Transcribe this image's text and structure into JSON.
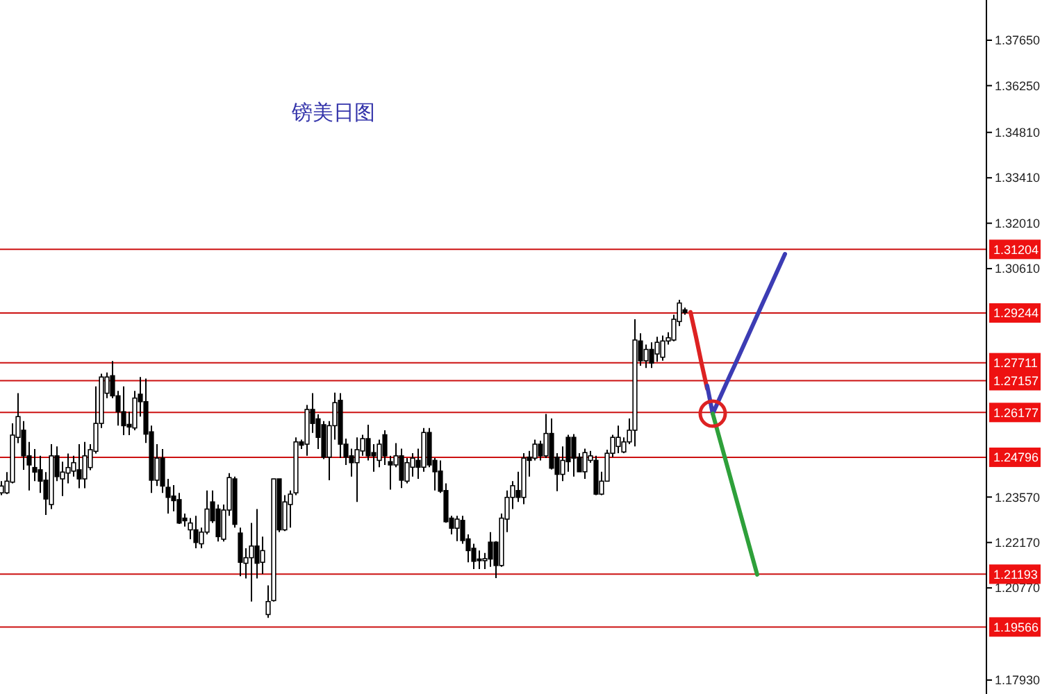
{
  "chart_data": {
    "type": "candlestick",
    "title": "镑美日图",
    "categories": [
      null,
      null,
      null,
      null,
      null,
      null,
      null,
      null,
      null,
      null,
      null,
      null,
      null,
      null,
      null,
      null,
      null,
      null,
      null,
      null,
      null,
      null,
      null,
      null,
      null,
      null,
      null,
      null,
      null,
      null,
      null,
      null,
      null,
      null,
      null,
      null,
      null,
      null,
      null,
      null,
      null,
      null,
      null,
      null,
      null,
      null,
      null,
      null,
      null,
      null,
      null,
      null,
      null,
      null,
      null,
      null,
      null,
      null,
      null,
      null,
      null,
      null,
      null,
      null,
      null,
      null,
      null,
      null,
      null,
      null,
      null,
      null,
      null,
      null,
      null,
      null,
      null,
      null,
      null,
      null,
      null,
      null,
      null,
      null,
      null,
      null,
      null,
      null,
      null,
      null,
      null,
      null,
      null,
      null,
      null,
      null,
      null,
      null,
      null,
      null,
      null,
      null,
      null,
      null,
      null,
      null,
      null,
      null,
      null,
      null,
      null,
      null,
      null,
      null,
      null,
      null,
      null,
      null,
      null,
      null,
      null,
      null,
      null,
      null,
      null,
      null,
      null,
      null,
      null,
      null,
      null,
      null,
      null,
      null,
      null,
      null,
      null,
      null,
      null,
      null,
      null,
      null,
      null,
      null,
      null,
      null,
      null,
      null,
      null,
      null,
      null,
      null,
      null,
      null,
      null,
      null,
      null,
      null,
      null,
      null,
      null,
      null,
      null,
      null,
      null,
      null,
      null,
      null,
      null,
      null,
      null,
      null,
      null,
      null,
      null,
      null,
      null
    ],
    "ohlc": [
      [
        1.237,
        1.2406,
        1.2363,
        1.2391
      ],
      [
        1.237,
        1.2434,
        1.2366,
        1.2406
      ],
      [
        1.2403,
        1.2584,
        1.2399,
        1.2548
      ],
      [
        1.2541,
        1.2677,
        1.2523,
        1.2605
      ],
      [
        1.2563,
        1.2591,
        1.2441,
        1.2484
      ],
      [
        1.2484,
        1.2527,
        1.2377,
        1.2456
      ],
      [
        1.2448,
        1.2505,
        1.2406,
        1.2434
      ],
      [
        1.2441,
        1.2484,
        1.237,
        1.2406
      ],
      [
        1.2409,
        1.2434,
        1.2302,
        1.2351
      ],
      [
        1.2334,
        1.252,
        1.232,
        1.2484
      ],
      [
        1.2484,
        1.2513,
        1.2406,
        1.242
      ],
      [
        1.2413,
        1.2466,
        1.236,
        1.2434
      ],
      [
        1.2431,
        1.2491,
        1.2399,
        1.2448
      ],
      [
        1.2437,
        1.2484,
        1.242,
        1.2463
      ],
      [
        1.2441,
        1.252,
        1.2384,
        1.2413
      ],
      [
        1.2413,
        1.2527,
        1.2384,
        1.2484
      ],
      [
        1.2448,
        1.252,
        1.244,
        1.2503
      ],
      [
        1.2498,
        1.2698,
        1.2491,
        1.2584
      ],
      [
        1.2584,
        1.2737,
        1.257,
        1.2727
      ],
      [
        1.2677,
        1.2741,
        1.2662,
        1.2727
      ],
      [
        1.2731,
        1.2776,
        1.2662,
        1.2669
      ],
      [
        1.2669,
        1.2684,
        1.2577,
        1.262
      ],
      [
        1.262,
        1.2698,
        1.2548,
        1.2577
      ],
      [
        1.2581,
        1.262,
        1.2548,
        1.2573
      ],
      [
        1.257,
        1.2684,
        1.2563,
        1.2662
      ],
      [
        1.2674,
        1.2727,
        1.2605,
        1.2651
      ],
      [
        1.2651,
        1.2722,
        1.2524,
        1.2551
      ],
      [
        1.2558,
        1.2577,
        1.237,
        1.2409
      ],
      [
        1.2409,
        1.252,
        1.2391,
        1.2477
      ],
      [
        1.2477,
        1.2505,
        1.237,
        1.2391
      ],
      [
        1.2387,
        1.2413,
        1.2306,
        1.2356
      ],
      [
        1.236,
        1.2394,
        1.2313,
        1.2346
      ],
      [
        1.2349,
        1.237,
        1.2274,
        1.2277
      ],
      [
        1.2292,
        1.2306,
        1.2266,
        1.2284
      ],
      [
        1.2256,
        1.2292,
        1.2227,
        1.2277
      ],
      [
        1.2256,
        1.2299,
        1.2199,
        1.2217
      ],
      [
        1.2213,
        1.2263,
        1.2199,
        1.2249
      ],
      [
        1.2249,
        1.2377,
        1.2242,
        1.232
      ],
      [
        1.2342,
        1.2377,
        1.2277,
        1.2284
      ],
      [
        1.232,
        1.2334,
        1.222,
        1.2235
      ],
      [
        1.2227,
        1.2334,
        1.222,
        1.2317
      ],
      [
        1.2317,
        1.2431,
        1.2299,
        1.2417
      ],
      [
        1.2413,
        1.242,
        1.2263,
        1.2273
      ],
      [
        1.2246,
        1.2263,
        1.2113,
        1.2156
      ],
      [
        1.2153,
        1.2199,
        1.2106,
        1.217
      ],
      [
        1.217,
        1.2277,
        1.2035,
        1.2206
      ],
      [
        1.2206,
        1.232,
        1.2106,
        1.2153
      ],
      [
        1.2156,
        1.2235,
        1.212,
        1.2192
      ],
      [
        1.1995,
        1.2085,
        1.1985,
        1.2035
      ],
      [
        1.2038,
        1.2413,
        1.2035,
        1.2413
      ],
      [
        1.2413,
        1.2413,
        1.2249,
        1.2256
      ],
      [
        1.2256,
        1.2363,
        1.2252,
        1.2342
      ],
      [
        1.2334,
        1.2377,
        1.2263,
        1.2366
      ],
      [
        1.237,
        1.2541,
        1.2363,
        1.2527
      ],
      [
        1.2527,
        1.2534,
        1.2505,
        1.2517
      ],
      [
        1.252,
        1.2641,
        1.2484,
        1.2627
      ],
      [
        1.2627,
        1.2677,
        1.2555,
        1.2584
      ],
      [
        1.2598,
        1.2612,
        1.2505,
        1.2541
      ],
      [
        1.258,
        1.2591,
        1.2474,
        1.248
      ],
      [
        1.248,
        1.2591,
        1.2409,
        1.2577
      ],
      [
        1.2577,
        1.2679,
        1.2534,
        1.2648
      ],
      [
        1.2655,
        1.2677,
        1.2477,
        1.252
      ],
      [
        1.252,
        1.2537,
        1.2456,
        1.248
      ],
      [
        1.2484,
        1.2506,
        1.242,
        1.2463
      ],
      [
        1.2463,
        1.2541,
        1.2342,
        1.2503
      ],
      [
        1.2499,
        1.2549,
        1.2484,
        1.2537
      ],
      [
        1.2537,
        1.258,
        1.247,
        1.2484
      ],
      [
        1.2494,
        1.252,
        1.2435,
        1.2484
      ],
      [
        1.247,
        1.2534,
        1.2449,
        1.252
      ],
      [
        1.2549,
        1.2563,
        1.2456,
        1.2484
      ],
      [
        1.2466,
        1.2484,
        1.238,
        1.2456
      ],
      [
        1.2456,
        1.2523,
        1.2449,
        1.2484
      ],
      [
        1.2484,
        1.2506,
        1.2385,
        1.2409
      ],
      [
        1.2406,
        1.2477,
        1.2399,
        1.2463
      ],
      [
        1.2449,
        1.2492,
        1.242,
        1.2477
      ],
      [
        1.247,
        1.2506,
        1.2413,
        1.2449
      ],
      [
        1.2449,
        1.257,
        1.2435,
        1.2556
      ],
      [
        1.2556,
        1.257,
        1.2449,
        1.2456
      ],
      [
        1.247,
        1.2477,
        1.2377,
        1.2435
      ],
      [
        1.2437,
        1.247,
        1.237,
        1.2375
      ],
      [
        1.2377,
        1.2399,
        1.2278,
        1.2281
      ],
      [
        1.2292,
        1.2299,
        1.2242,
        1.2261
      ],
      [
        1.2261,
        1.2299,
        1.2221,
        1.2289
      ],
      [
        1.2285,
        1.2299,
        1.2213,
        1.2223
      ],
      [
        1.2228,
        1.2242,
        1.2156,
        1.2192
      ],
      [
        1.2199,
        1.2213,
        1.2135,
        1.2159
      ],
      [
        1.2166,
        1.2192,
        1.2135,
        1.2161
      ],
      [
        1.2161,
        1.2185,
        1.2135,
        1.2167
      ],
      [
        1.2218,
        1.2249,
        1.2142,
        1.2166
      ],
      [
        1.2218,
        1.2221,
        1.2107,
        1.2146
      ],
      [
        1.2146,
        1.2306,
        1.2142,
        1.2292
      ],
      [
        1.2289,
        1.2377,
        1.2249,
        1.2356
      ],
      [
        1.2356,
        1.2406,
        1.232,
        1.2392
      ],
      [
        1.2377,
        1.2435,
        1.2342,
        1.2356
      ],
      [
        1.2356,
        1.2492,
        1.2335,
        1.2477
      ],
      [
        1.248,
        1.2499,
        1.242,
        1.247
      ],
      [
        1.2477,
        1.2534,
        1.247,
        1.252
      ],
      [
        1.252,
        1.2531,
        1.247,
        1.2484
      ],
      [
        1.2484,
        1.2613,
        1.2477,
        1.2553
      ],
      [
        1.2553,
        1.2599,
        1.2442,
        1.2446
      ],
      [
        1.248,
        1.2492,
        1.2375,
        1.2427
      ],
      [
        1.2427,
        1.2513,
        1.2406,
        1.247
      ],
      [
        1.2541,
        1.2549,
        1.2435,
        1.2466
      ],
      [
        1.2541,
        1.2551,
        1.242,
        1.2477
      ],
      [
        1.248,
        1.2492,
        1.2435,
        1.2435
      ],
      [
        1.2435,
        1.2506,
        1.2413,
        1.2494
      ],
      [
        1.247,
        1.2499,
        1.2463,
        1.2484
      ],
      [
        1.247,
        1.2484,
        1.2363,
        1.2366
      ],
      [
        1.2366,
        1.2435,
        1.2363,
        1.2406
      ],
      [
        1.2406,
        1.2503,
        1.2406,
        1.2492
      ],
      [
        1.2492,
        1.2549,
        1.248,
        1.2541
      ],
      [
        1.2513,
        1.2577,
        1.2492,
        1.2541
      ],
      [
        1.2496,
        1.2541,
        1.2492,
        1.2527
      ],
      [
        1.2527,
        1.2599,
        1.252,
        1.2563
      ],
      [
        1.2563,
        1.2905,
        1.2513,
        1.2841
      ],
      [
        1.2838,
        1.2862,
        1.2762,
        1.2777
      ],
      [
        1.2777,
        1.2827,
        1.2755,
        1.2812
      ],
      [
        1.2812,
        1.2834,
        1.2755,
        1.277
      ],
      [
        1.2798,
        1.2851,
        1.2774,
        1.2834
      ],
      [
        1.2788,
        1.2855,
        1.2777,
        1.2838
      ],
      [
        1.2838,
        1.2865,
        1.2827,
        1.2848
      ],
      [
        1.2841,
        1.2919,
        1.2837,
        1.2905
      ],
      [
        1.2898,
        1.2965,
        1.2884,
        1.2955
      ],
      [
        1.2934,
        1.2941,
        1.2919,
        1.2926
      ],
      null,
      null,
      null,
      null,
      null,
      null,
      null,
      null,
      null,
      null,
      null,
      null,
      null,
      null,
      null,
      null,
      null,
      null,
      null,
      null,
      null,
      null,
      null,
      null,
      null,
      null,
      null,
      null,
      null,
      null,
      null,
      null,
      null,
      null,
      null,
      null,
      null,
      null,
      null,
      null,
      null,
      null,
      null,
      null,
      null,
      null,
      null,
      null,
      null,
      null,
      null,
      null,
      null
    ],
    "series": [
      {
        "type": "line",
        "color": "#dd2222",
        "values": [
          null,
          null,
          null,
          null,
          null,
          null,
          null,
          null,
          null,
          null,
          null,
          null,
          null,
          null,
          null,
          null,
          null,
          null,
          null,
          null,
          null,
          null,
          null,
          null,
          null,
          null,
          null,
          null,
          null,
          null,
          null,
          null,
          null,
          null,
          null,
          null,
          null,
          null,
          null,
          null,
          null,
          null,
          null,
          null,
          null,
          null,
          null,
          null,
          null,
          null,
          null,
          null,
          null,
          null,
          null,
          null,
          null,
          null,
          null,
          null,
          null,
          null,
          null,
          null,
          null,
          null,
          null,
          null,
          null,
          null,
          null,
          null,
          null,
          null,
          null,
          null,
          null,
          null,
          null,
          null,
          null,
          null,
          null,
          null,
          null,
          null,
          null,
          null,
          null,
          null,
          null,
          null,
          null,
          null,
          null,
          null,
          null,
          null,
          null,
          null,
          null,
          null,
          null,
          null,
          null,
          null,
          null,
          null,
          null,
          null,
          null,
          null,
          null,
          null,
          null,
          null,
          null,
          null,
          null,
          null,
          null,
          null,
          null,
          null,
          1.2927,
          1.285,
          1.2768,
          1.2691,
          null,
          null,
          null,
          null,
          null,
          null,
          null,
          null,
          null,
          null,
          null,
          null,
          null,
          null,
          null,
          null,
          null,
          null,
          null,
          null,
          null,
          null,
          null,
          null,
          null,
          null,
          null,
          null,
          null,
          null,
          null,
          null,
          null,
          null,
          null,
          null,
          null,
          null,
          null,
          null,
          null,
          null,
          null,
          null,
          null,
          null,
          null,
          null,
          null
        ]
      },
      {
        "type": "line",
        "color": "#3c3cb4",
        "values": [
          null,
          null,
          null,
          null,
          null,
          null,
          null,
          null,
          null,
          null,
          null,
          null,
          null,
          null,
          null,
          null,
          null,
          null,
          null,
          null,
          null,
          null,
          null,
          null,
          null,
          null,
          null,
          null,
          null,
          null,
          null,
          null,
          null,
          null,
          null,
          null,
          null,
          null,
          null,
          null,
          null,
          null,
          null,
          null,
          null,
          null,
          null,
          null,
          null,
          null,
          null,
          null,
          null,
          null,
          null,
          null,
          null,
          null,
          null,
          null,
          null,
          null,
          null,
          null,
          null,
          null,
          null,
          null,
          null,
          null,
          null,
          null,
          null,
          null,
          null,
          null,
          null,
          null,
          null,
          null,
          null,
          null,
          null,
          null,
          null,
          null,
          null,
          null,
          null,
          null,
          null,
          null,
          null,
          null,
          null,
          null,
          null,
          null,
          null,
          null,
          null,
          null,
          null,
          null,
          null,
          null,
          null,
          null,
          null,
          null,
          null,
          null,
          null,
          null,
          null,
          null,
          null,
          null,
          null,
          null,
          null,
          null,
          null,
          null,
          null,
          null,
          null,
          1.27,
          1.2614,
          1.2652,
          1.269,
          1.2728,
          1.2765,
          1.2803,
          1.2841,
          1.2879,
          1.2917,
          1.2955,
          1.2992,
          1.303,
          1.3068,
          1.3106,
          null,
          null,
          null,
          null,
          null,
          null,
          null,
          null,
          null,
          null,
          null,
          null,
          null,
          null,
          null,
          null,
          null,
          null,
          null,
          null,
          null,
          null,
          null,
          null,
          null,
          null,
          null,
          null,
          null,
          null,
          null,
          null,
          null,
          null,
          null
        ]
      },
      {
        "type": "line",
        "color": "#2ea03a",
        "values": [
          null,
          null,
          null,
          null,
          null,
          null,
          null,
          null,
          null,
          null,
          null,
          null,
          null,
          null,
          null,
          null,
          null,
          null,
          null,
          null,
          null,
          null,
          null,
          null,
          null,
          null,
          null,
          null,
          null,
          null,
          null,
          null,
          null,
          null,
          null,
          null,
          null,
          null,
          null,
          null,
          null,
          null,
          null,
          null,
          null,
          null,
          null,
          null,
          null,
          null,
          null,
          null,
          null,
          null,
          null,
          null,
          null,
          null,
          null,
          null,
          null,
          null,
          null,
          null,
          null,
          null,
          null,
          null,
          null,
          null,
          null,
          null,
          null,
          null,
          null,
          null,
          null,
          null,
          null,
          null,
          null,
          null,
          null,
          null,
          null,
          null,
          null,
          null,
          null,
          null,
          null,
          null,
          null,
          null,
          null,
          null,
          null,
          null,
          null,
          null,
          null,
          null,
          null,
          null,
          null,
          null,
          null,
          null,
          null,
          null,
          null,
          null,
          null,
          null,
          null,
          null,
          null,
          null,
          null,
          null,
          null,
          null,
          null,
          null,
          null,
          null,
          null,
          null,
          1.2614,
          1.2552,
          1.249,
          1.2428,
          1.2366,
          1.2304,
          1.2242,
          1.218,
          1.2118,
          null,
          null,
          null,
          null,
          null,
          null,
          null,
          null,
          null,
          null,
          null,
          null,
          null,
          null,
          null,
          null,
          null,
          null,
          null,
          null,
          null,
          null,
          null,
          null,
          null,
          null,
          null,
          null,
          null,
          null,
          null,
          null,
          null,
          null,
          null,
          null,
          null,
          null,
          null,
          null
        ]
      }
    ],
    "ylim": [
      1.175,
      1.3889
    ],
    "yticks": [
      {
        "value": 1.3765,
        "label": "1.37650"
      },
      {
        "value": 1.3625,
        "label": "1.36250"
      },
      {
        "value": 1.3481,
        "label": "1.34810"
      },
      {
        "value": 1.3341,
        "label": "1.33410"
      },
      {
        "value": 1.3201,
        "label": "1.32010"
      },
      {
        "value": 1.3061,
        "label": "1.30610"
      },
      {
        "value": 1.2357,
        "label": "1.23570"
      },
      {
        "value": 1.2217,
        "label": "1.22170"
      },
      {
        "value": 1.2077,
        "label": "1.20770"
      },
      {
        "value": 1.1793,
        "label": "1.17930"
      }
    ],
    "ref_lines": [
      {
        "axis": "y",
        "value": 1.31204,
        "label": "1.31204",
        "color": "#cc1111"
      },
      {
        "axis": "y",
        "value": 1.29244,
        "label": "1.29244",
        "color": "#cc1111"
      },
      {
        "axis": "y",
        "value": 1.27711,
        "label": "1.27711",
        "color": "#cc1111"
      },
      {
        "axis": "y",
        "value": 1.27157,
        "label": "1.27157",
        "color": "#cc1111"
      },
      {
        "axis": "y",
        "value": 1.26177,
        "label": "1.26177",
        "color": "#cc1111"
      },
      {
        "axis": "y",
        "value": 1.24796,
        "label": "1.24796",
        "color": "#cc1111"
      },
      {
        "axis": "y",
        "value": 1.21193,
        "label": "1.21193",
        "color": "#cc1111"
      },
      {
        "axis": "y",
        "value": 1.19566,
        "label": "1.19566",
        "color": "#cc1111"
      }
    ],
    "tick_labels": "y",
    "grid": false
  }
}
